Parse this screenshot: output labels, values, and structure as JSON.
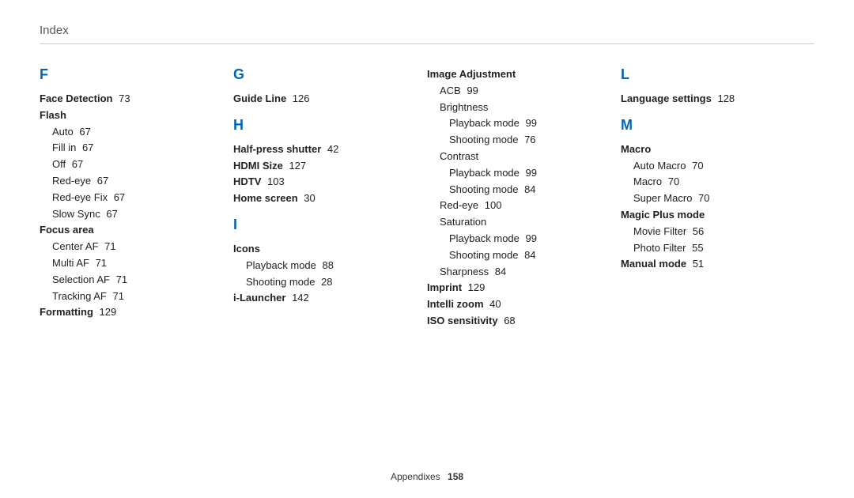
{
  "header": "Index",
  "footer": {
    "label": "Appendixes",
    "page": "158"
  },
  "columns": [
    {
      "sections": [
        {
          "letter": "F",
          "entries": [
            {
              "type": "bold",
              "text": "Face Detection",
              "page": "73"
            },
            {
              "type": "bold",
              "text": "Flash"
            },
            {
              "type": "sub",
              "text": "Auto",
              "page": "67"
            },
            {
              "type": "sub",
              "text": "Fill in",
              "page": "67"
            },
            {
              "type": "sub",
              "text": "Off",
              "page": "67"
            },
            {
              "type": "sub",
              "text": "Red-eye",
              "page": "67"
            },
            {
              "type": "sub",
              "text": "Red-eye Fix",
              "page": "67"
            },
            {
              "type": "sub",
              "text": "Slow Sync",
              "page": "67"
            },
            {
              "type": "bold",
              "text": "Focus area"
            },
            {
              "type": "sub",
              "text": "Center AF",
              "page": "71"
            },
            {
              "type": "sub",
              "text": "Multi AF",
              "page": "71"
            },
            {
              "type": "sub",
              "text": "Selection AF",
              "page": "71"
            },
            {
              "type": "sub",
              "text": "Tracking AF",
              "page": "71"
            },
            {
              "type": "bold",
              "text": "Formatting",
              "page": "129"
            }
          ]
        }
      ]
    },
    {
      "sections": [
        {
          "letter": "G",
          "entries": [
            {
              "type": "bold",
              "text": "Guide Line",
              "page": "126"
            }
          ]
        },
        {
          "letter": "H",
          "mt": true,
          "entries": [
            {
              "type": "bold",
              "text": "Half-press shutter",
              "page": "42"
            },
            {
              "type": "bold",
              "text": "HDMI Size",
              "page": "127"
            },
            {
              "type": "bold",
              "text": "HDTV",
              "page": "103"
            },
            {
              "type": "bold",
              "text": "Home screen",
              "page": "30"
            }
          ]
        },
        {
          "letter": "I",
          "mt": true,
          "entries": [
            {
              "type": "bold",
              "text": "Icons"
            },
            {
              "type": "sub",
              "text": "Playback mode",
              "page": "88"
            },
            {
              "type": "sub",
              "text": "Shooting mode",
              "page": "28"
            },
            {
              "type": "bold",
              "text": "i-Launcher",
              "page": "142"
            }
          ]
        }
      ]
    },
    {
      "sections": [
        {
          "entries": [
            {
              "type": "bold",
              "text": "Image Adjustment"
            },
            {
              "type": "sub",
              "text": "ACB",
              "page": "99"
            },
            {
              "type": "sub",
              "text": "Brightness"
            },
            {
              "type": "subsub",
              "text": "Playback mode",
              "page": "99"
            },
            {
              "type": "subsub",
              "text": "Shooting mode",
              "page": "76"
            },
            {
              "type": "sub",
              "text": "Contrast"
            },
            {
              "type": "subsub",
              "text": "Playback mode",
              "page": "99"
            },
            {
              "type": "subsub",
              "text": "Shooting mode",
              "page": "84"
            },
            {
              "type": "sub",
              "text": "Red-eye",
              "page": "100"
            },
            {
              "type": "sub",
              "text": "Saturation"
            },
            {
              "type": "subsub",
              "text": "Playback mode",
              "page": "99"
            },
            {
              "type": "subsub",
              "text": "Shooting mode",
              "page": "84"
            },
            {
              "type": "sub",
              "text": "Sharpness",
              "page": "84"
            },
            {
              "type": "bold",
              "text": "Imprint",
              "page": "129"
            },
            {
              "type": "bold",
              "text": "Intelli zoom",
              "page": "40"
            },
            {
              "type": "bold",
              "text": "ISO sensitivity",
              "page": "68"
            }
          ]
        }
      ]
    },
    {
      "sections": [
        {
          "letter": "L",
          "entries": [
            {
              "type": "bold",
              "text": "Language settings",
              "page": "128"
            }
          ]
        },
        {
          "letter": "M",
          "mt": true,
          "entries": [
            {
              "type": "bold",
              "text": "Macro"
            },
            {
              "type": "sub",
              "text": "Auto Macro",
              "page": "70"
            },
            {
              "type": "sub",
              "text": "Macro",
              "page": "70"
            },
            {
              "type": "sub",
              "text": "Super Macro",
              "page": "70"
            },
            {
              "type": "bold",
              "text": "Magic Plus mode"
            },
            {
              "type": "sub",
              "text": "Movie Filter",
              "page": "56"
            },
            {
              "type": "sub",
              "text": "Photo Filter",
              "page": "55"
            },
            {
              "type": "bold",
              "text": "Manual mode",
              "page": "51"
            }
          ]
        }
      ]
    }
  ]
}
